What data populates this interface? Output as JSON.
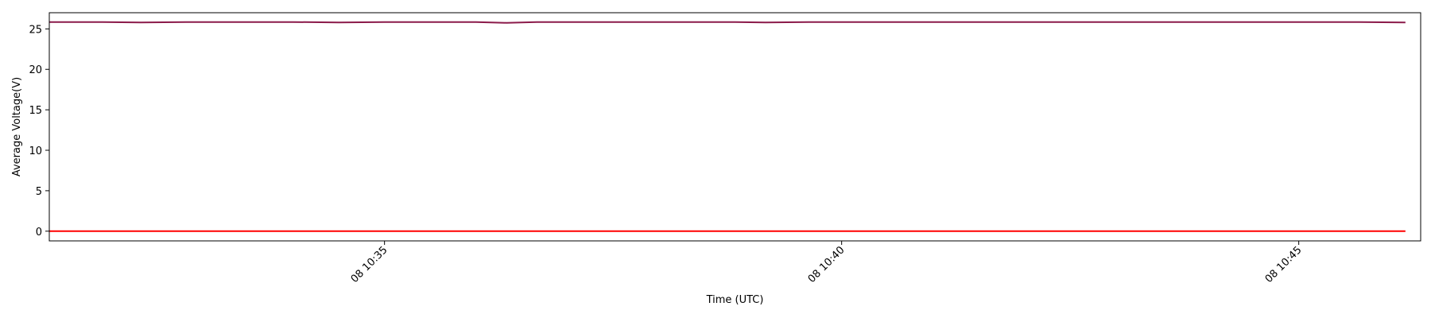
{
  "chart_data": {
    "type": "line",
    "title": "",
    "xlabel": "Time (UTC)",
    "ylabel": "Average Voltage(V)",
    "x_ticks": [
      "08 10:35",
      "08 10:40",
      "08 10:45"
    ],
    "x_tick_times": [
      "10:35",
      "10:40",
      "10:45"
    ],
    "xlim": [
      "10:31:20",
      "10:46:20"
    ],
    "y_ticks": [
      0,
      5,
      10,
      15,
      20,
      25
    ],
    "ylim": [
      -1.2,
      27.0
    ],
    "grid": false,
    "legend": false,
    "x": [
      "10:31:20",
      "10:31:55",
      "10:32:20",
      "10:32:50",
      "10:33:20",
      "10:34:00",
      "10:34:30",
      "10:35:00",
      "10:35:30",
      "10:36:00",
      "10:36:20",
      "10:36:40",
      "10:37:10",
      "10:37:40",
      "10:38:20",
      "10:38:50",
      "10:39:10",
      "10:39:40",
      "10:40:10",
      "10:40:40",
      "10:41:10",
      "10:41:40",
      "10:42:10",
      "10:42:40",
      "10:43:10",
      "10:43:40",
      "10:44:10",
      "10:44:40",
      "10:45:10",
      "10:45:40",
      "10:46:10"
    ],
    "series": [
      {
        "color": "#8b1a4a",
        "values": [
          25.85,
          25.85,
          25.8,
          25.85,
          25.85,
          25.85,
          25.8,
          25.85,
          25.85,
          25.85,
          25.75,
          25.85,
          25.85,
          25.85,
          25.85,
          25.85,
          25.8,
          25.85,
          25.85,
          25.85,
          25.85,
          25.85,
          25.85,
          25.85,
          25.85,
          25.85,
          25.85,
          25.85,
          25.85,
          25.85,
          25.8
        ]
      },
      {
        "color": "#ff0000",
        "values": [
          0,
          0,
          0,
          0,
          0,
          0,
          0,
          0,
          0,
          0,
          0,
          0,
          0,
          0,
          0,
          0,
          0,
          0,
          0,
          0,
          0,
          0,
          0,
          0,
          0,
          0,
          0,
          0,
          0,
          0,
          0
        ]
      }
    ]
  }
}
